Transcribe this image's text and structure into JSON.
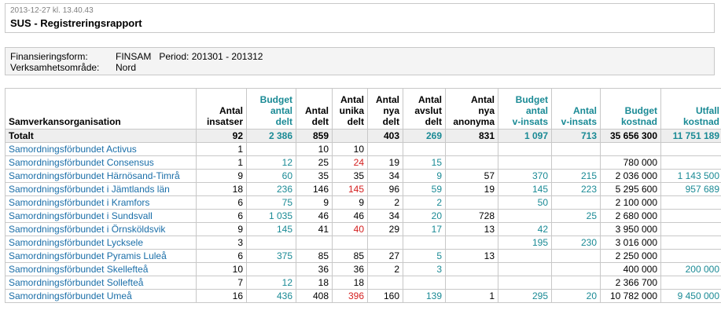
{
  "header": {
    "timestamp": "2013-12-27 kl. 13.40.43",
    "title": "SUS - Registreringsrapport"
  },
  "info": {
    "finansiering_label": "Finansieringsform:",
    "finansiering_value": "FINSAM",
    "period_label": "Period:",
    "period_value": "201301 - 201312",
    "verksamhet_label": "Verksamhetsområde:",
    "verksamhet_value": "Nord"
  },
  "colors": {
    "teal": "#1a8a95",
    "red": "#d42020",
    "link": "#1a6ea8",
    "total_bg": "#eeeeee",
    "border": "#c8c8c8"
  },
  "table": {
    "columns": [
      {
        "l1": "",
        "l2": "",
        "l3": "Samverkansorganisation",
        "teal": false
      },
      {
        "l1": "",
        "l2": "Antal",
        "l3": "insatser",
        "teal": false
      },
      {
        "l1": "Budget",
        "l2": "antal",
        "l3": "delt",
        "teal": true
      },
      {
        "l1": "",
        "l2": "Antal",
        "l3": "delt",
        "teal": false
      },
      {
        "l1": "Antal",
        "l2": "unika",
        "l3": "delt",
        "teal": false
      },
      {
        "l1": "Antal",
        "l2": "nya",
        "l3": "delt",
        "teal": false
      },
      {
        "l1": "Antal",
        "l2": "avslut",
        "l3": "delt",
        "teal": false
      },
      {
        "l1": "Antal",
        "l2": "nya",
        "l3": "anonyma",
        "teal": false
      },
      {
        "l1": "Budget",
        "l2": "antal",
        "l3": "v-insats",
        "teal": true
      },
      {
        "l1": "",
        "l2": "Antal",
        "l3": "v-insats",
        "teal": true
      },
      {
        "l1": "",
        "l2": "Budget",
        "l3": "kostnad",
        "teal": true
      },
      {
        "l1": "",
        "l2": "Utfall",
        "l3": "kostnad",
        "teal": true
      }
    ],
    "total": [
      "Totalt",
      "92",
      "2 386",
      "859",
      "",
      "403",
      "269",
      "831",
      "1 097",
      "713",
      "35 656 300",
      "11 751 189"
    ],
    "rows": [
      [
        "Samordningsförbundet Activus",
        "1",
        "",
        "10",
        "10",
        "",
        "",
        "",
        "",
        "",
        "",
        ""
      ],
      [
        "Samordningsförbundet Consensus",
        "1",
        "12",
        "25",
        "24",
        "19",
        "15",
        "",
        "",
        "",
        "780 000",
        ""
      ],
      [
        "Samordningsförbundet Härnösand-Timrå",
        "9",
        "60",
        "35",
        "35",
        "34",
        "9",
        "57",
        "370",
        "215",
        "2 036 000",
        "1 143 500"
      ],
      [
        "Samordningsförbundet i Jämtlands län",
        "18",
        "236",
        "146",
        "145",
        "96",
        "59",
        "19",
        "145",
        "223",
        "5 295 600",
        "957 689"
      ],
      [
        "Samordningsförbundet i Kramfors",
        "6",
        "75",
        "9",
        "9",
        "2",
        "2",
        "",
        "50",
        "",
        "2 100 000",
        ""
      ],
      [
        "Samordningsförbundet i Sundsvall",
        "6",
        "1 035",
        "46",
        "46",
        "34",
        "20",
        "728",
        "",
        "25",
        "2 680 000",
        ""
      ],
      [
        "Samordningsförbundet i Örnsköldsvik",
        "9",
        "145",
        "41",
        "40",
        "29",
        "17",
        "13",
        "42",
        "",
        "3 950 000",
        ""
      ],
      [
        "Samordningsförbundet Lycksele",
        "3",
        "",
        "",
        "",
        "",
        "",
        "",
        "195",
        "230",
        "3 016 000",
        ""
      ],
      [
        "Samordningsförbundet Pyramis Luleå",
        "6",
        "375",
        "85",
        "85",
        "27",
        "5",
        "13",
        "",
        "",
        "2 250 000",
        ""
      ],
      [
        "Samordningsförbundet Skellefteå",
        "10",
        "",
        "36",
        "36",
        "2",
        "3",
        "",
        "",
        "",
        "400 000",
        "200 000"
      ],
      [
        "Samordningsförbundet Sollefteå",
        "7",
        "12",
        "18",
        "18",
        "",
        "",
        "",
        "",
        "",
        "2 366 700",
        ""
      ],
      [
        "Samordningsförbundet Umeå",
        "16",
        "436",
        "408",
        "396",
        "160",
        "139",
        "1",
        "295",
        "20",
        "10 782 000",
        "9 450 000"
      ]
    ]
  }
}
